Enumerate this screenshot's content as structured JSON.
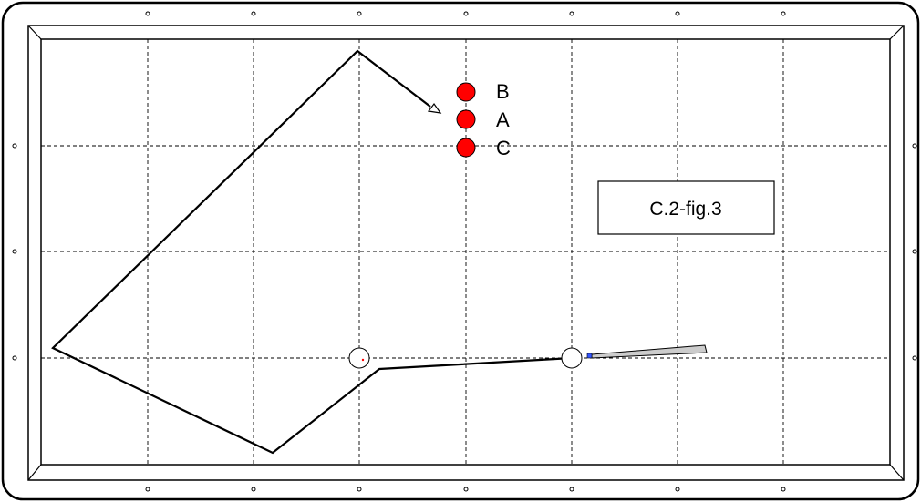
{
  "labels": {
    "ball_b": "B",
    "ball_a": "A",
    "ball_c": "C",
    "figure_caption": "C.2-fig.3"
  },
  "colors": {
    "frame": "#000000",
    "grid": "#000000",
    "object_ball": "#ff0000",
    "cue_tip": "#3355ff",
    "cue_fill": "#cccccc",
    "red_dot": "#ff0000"
  }
}
